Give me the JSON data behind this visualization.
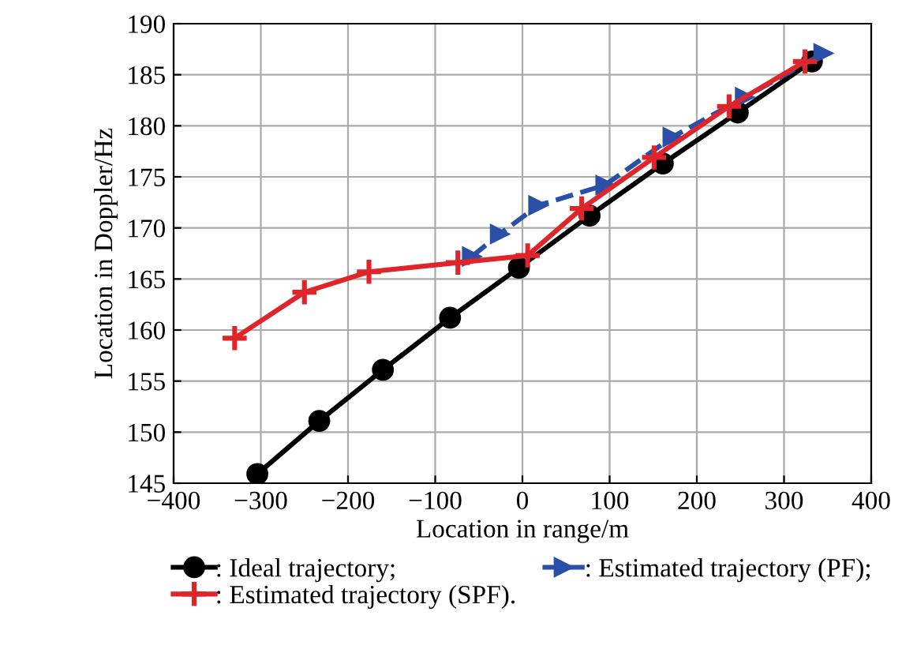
{
  "chart_data": {
    "type": "line",
    "xlabel": "Location in range/m",
    "ylabel": "Location in Doppler/Hz",
    "xlim": [
      -400,
      400
    ],
    "xticks": [
      -400,
      -300,
      -200,
      -100,
      0,
      100,
      200,
      300,
      400
    ],
    "ylim": [
      145,
      190
    ],
    "yticks": [
      145,
      150,
      155,
      160,
      165,
      170,
      175,
      180,
      185,
      190
    ],
    "grid": true,
    "legend": "bottom",
    "series": [
      {
        "name": ": Ideal trajectory;",
        "color": "#000000",
        "marker": "circle",
        "line_style": "solid",
        "x": [
          -304,
          -233,
          -160,
          -83,
          -4,
          77,
          161,
          247,
          332
        ],
        "values": [
          145.9,
          151.1,
          156.1,
          161.2,
          166.1,
          171.2,
          176.3,
          181.3,
          186.3
        ]
      },
      {
        "name": ": Estimated trajectory (PF);",
        "color": "#2a4fa8",
        "marker": "triangle",
        "line_style": "dashed",
        "x": [
          -58,
          -26,
          18,
          95,
          172,
          255,
          345
        ],
        "values": [
          167.2,
          169.4,
          172.2,
          174.2,
          178.9,
          182.8,
          187.1
        ]
      },
      {
        "name": ": Estimated trajectory (SPF).",
        "color": "#e0252a",
        "marker": "cross",
        "line_style": "solid",
        "x": [
          -330,
          -250,
          -176,
          -74,
          6,
          68,
          151,
          237,
          324
        ],
        "values": [
          159.2,
          163.7,
          165.7,
          166.6,
          167.3,
          171.9,
          176.9,
          181.9,
          186.3
        ]
      }
    ]
  }
}
